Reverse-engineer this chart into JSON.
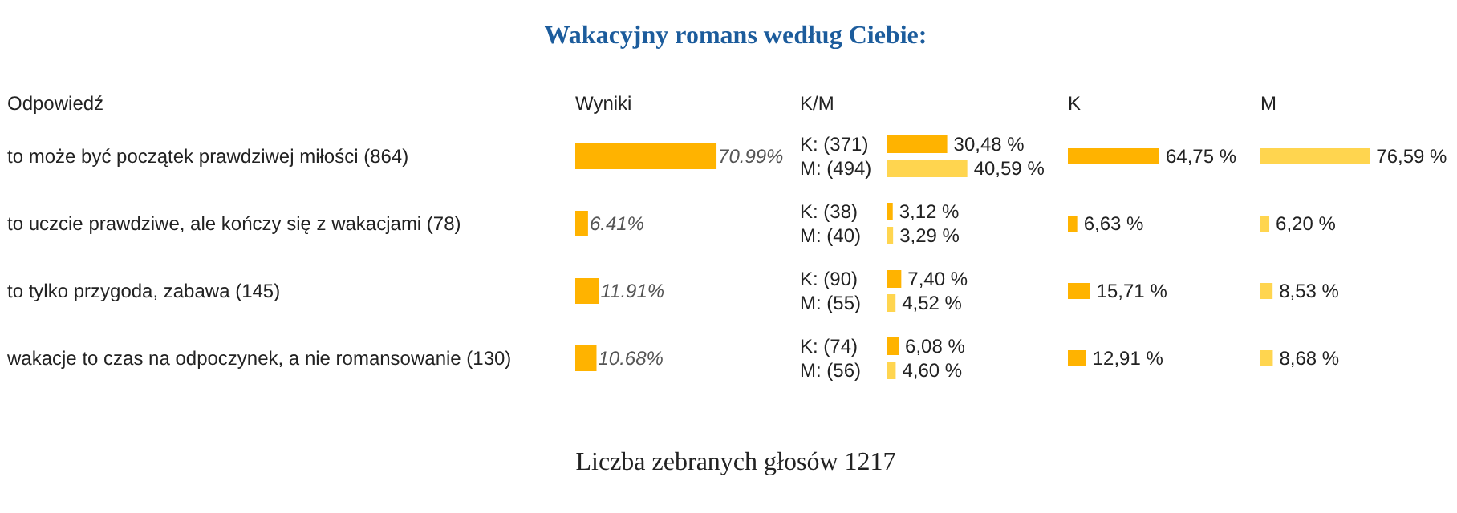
{
  "chart_data": [
    {
      "type": "bar",
      "orientation": "horizontal",
      "title": "Wakacyjny romans według Ciebie:",
      "ylabel": "Odpowiedź",
      "xlabel": "Wyniki",
      "categories": [
        "to może być początek prawdziwej miłości (864)",
        "to uczcie prawdziwe, ale kończy się z wakacjami (78)",
        "to tylko przygoda, zabawa (145)",
        "wakacje to czas na odpoczynek, a nie romansowanie (130)"
      ],
      "values": [
        70.99,
        6.41,
        11.91,
        10.68
      ],
      "color": "#ffb300",
      "value_labels": [
        "70.99%",
        "6.41%",
        "11.91%",
        "10.68%"
      ],
      "annotations": [
        "Liczba zebranych głosów 1217"
      ]
    },
    {
      "type": "bar",
      "orientation": "horizontal",
      "xlabel": "K/M",
      "categories": [
        "K: (371)",
        "M: (494)",
        "K: (38)",
        "M: (40)",
        "K: (90)",
        "M: (55)",
        "K: (74)",
        "M: (56)"
      ],
      "values": [
        30.48,
        40.59,
        3.12,
        3.29,
        7.4,
        4.52,
        6.08,
        4.6
      ],
      "colors": [
        "#ffb300",
        "#ffd54f",
        "#ffb300",
        "#ffd54f",
        "#ffb300",
        "#ffd54f",
        "#ffb300",
        "#ffd54f"
      ],
      "value_labels": [
        "30,48 %",
        "40,59 %",
        "3,12 %",
        "3,29 %",
        "7,40 %",
        "4,52 %",
        "6,08 %",
        "4,60 %"
      ]
    },
    {
      "type": "bar",
      "orientation": "horizontal",
      "xlabel": "K",
      "values": [
        64.75,
        6.63,
        15.71,
        12.91
      ],
      "color": "#ffb300",
      "value_labels": [
        "64,75 %",
        "6,63 %",
        "15,71 %",
        "12,91 %"
      ]
    },
    {
      "type": "bar",
      "orientation": "horizontal",
      "xlabel": "M",
      "values": [
        76.59,
        6.2,
        8.53,
        8.68
      ],
      "color": "#ffd54f",
      "value_labels": [
        "76,59 %",
        "6,20 %",
        "8,53 %",
        "8,68 %"
      ]
    }
  ]
}
